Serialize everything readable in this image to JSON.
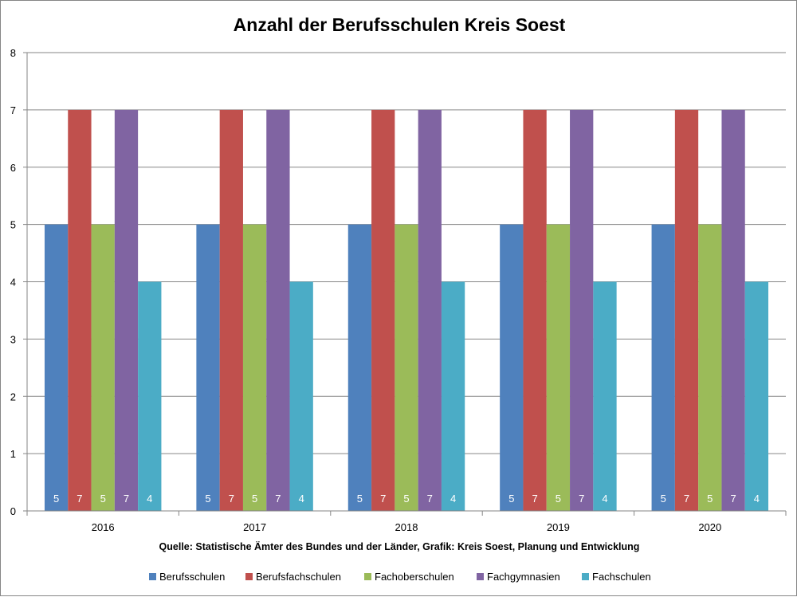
{
  "chart_data": {
    "type": "bar",
    "title": "Anzahl der Berufsschulen Kreis Soest",
    "source_note": "Quelle: Statistische Ämter des Bundes und der Länder, Grafik: Kreis Soest, Planung und Entwicklung",
    "categories": [
      "2016",
      "2017",
      "2018",
      "2019",
      "2020"
    ],
    "ylim": [
      0,
      8
    ],
    "yticks": [
      "0",
      "1",
      "2",
      "3",
      "4",
      "5",
      "6",
      "7",
      "8"
    ],
    "grid": true,
    "legend_position": "bottom",
    "data_labels": true,
    "series": [
      {
        "name": "Berufsschulen",
        "color": "#4F81BD",
        "values": [
          5,
          5,
          5,
          5,
          5
        ]
      },
      {
        "name": "Berufsfachschulen",
        "color": "#C0504D",
        "values": [
          7,
          7,
          7,
          7,
          7
        ]
      },
      {
        "name": "Fachoberschulen",
        "color": "#9BBB59",
        "values": [
          5,
          5,
          5,
          5,
          5
        ]
      },
      {
        "name": "Fachgymnasien",
        "color": "#8064A2",
        "values": [
          7,
          7,
          7,
          7,
          7
        ]
      },
      {
        "name": "Fachschulen",
        "color": "#4BACC6",
        "values": [
          4,
          4,
          4,
          4,
          4
        ]
      }
    ]
  }
}
